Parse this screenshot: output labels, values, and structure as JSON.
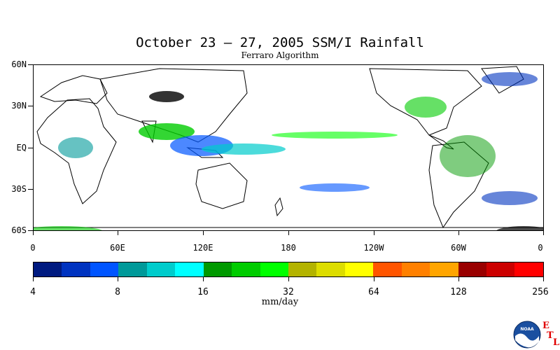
{
  "title": "October 23 – 27, 2005 SSM/I Rainfall",
  "subtitle": "Ferraro Algorithm",
  "lat_labels": [
    "60N",
    "30N",
    "EQ",
    "30S",
    "60S"
  ],
  "lon_labels": [
    "0",
    "60E",
    "120E",
    "180",
    "120W",
    "60W",
    "0"
  ],
  "colorbar": {
    "colors": [
      "#001a80",
      "#0033c0",
      "#0055ff",
      "#009999",
      "#00cccc",
      "#00ffff",
      "#009900",
      "#00cc00",
      "#00ff00",
      "#b3b300",
      "#dddd00",
      "#ffff00",
      "#ff5500",
      "#ff8000",
      "#ffa500",
      "#990000",
      "#cc0000",
      "#ff0000"
    ],
    "tick_labels": [
      "4",
      "8",
      "16",
      "32",
      "64",
      "128",
      "256"
    ],
    "units": "mm/day"
  },
  "logo": {
    "text": "NOAA",
    "letters": [
      "E",
      "T",
      "L"
    ]
  }
}
